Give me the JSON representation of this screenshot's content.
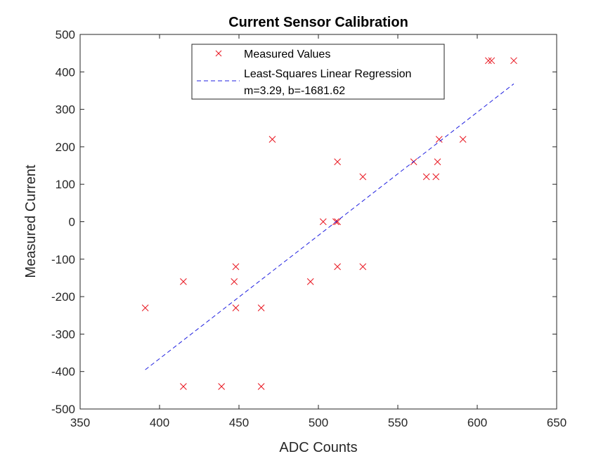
{
  "chart_data": {
    "type": "scatter",
    "title": "Current Sensor Calibration",
    "xlabel": "ADC Counts",
    "ylabel": "Measured Current",
    "xlim": [
      350,
      650
    ],
    "ylim": [
      -500,
      500
    ],
    "xticks": [
      350,
      400,
      450,
      500,
      550,
      600,
      650
    ],
    "yticks": [
      -500,
      -400,
      -300,
      -200,
      -100,
      0,
      100,
      200,
      300,
      400,
      500
    ],
    "grid": false,
    "legend_position": "top-center",
    "series": [
      {
        "name": "Measured Values",
        "kind": "marker",
        "marker": "x",
        "color": "#e8141e",
        "points": [
          [
            391,
            -230
          ],
          [
            415,
            -160
          ],
          [
            415,
            -440
          ],
          [
            439,
            -440
          ],
          [
            447,
            -160
          ],
          [
            448,
            -120
          ],
          [
            448,
            -230
          ],
          [
            464,
            -230
          ],
          [
            464,
            -440
          ],
          [
            471,
            220
          ],
          [
            495,
            -160
          ],
          [
            503,
            0
          ],
          [
            511,
            0
          ],
          [
            512,
            0
          ],
          [
            512,
            160
          ],
          [
            512,
            -120
          ],
          [
            528,
            120
          ],
          [
            528,
            -120
          ],
          [
            560,
            160
          ],
          [
            568,
            120
          ],
          [
            574,
            120
          ],
          [
            575,
            160
          ],
          [
            576,
            220
          ],
          [
            591,
            220
          ],
          [
            607,
            430
          ],
          [
            609,
            430
          ],
          [
            623,
            430
          ]
        ]
      },
      {
        "name": "Least-Squares Linear Regression",
        "name_line2": "m=3.29, b=-1681.62",
        "kind": "line",
        "style": "dashed",
        "color": "#1f1fe0",
        "points": [
          [
            391,
            -395.23
          ],
          [
            623,
            368.05
          ]
        ]
      }
    ]
  }
}
